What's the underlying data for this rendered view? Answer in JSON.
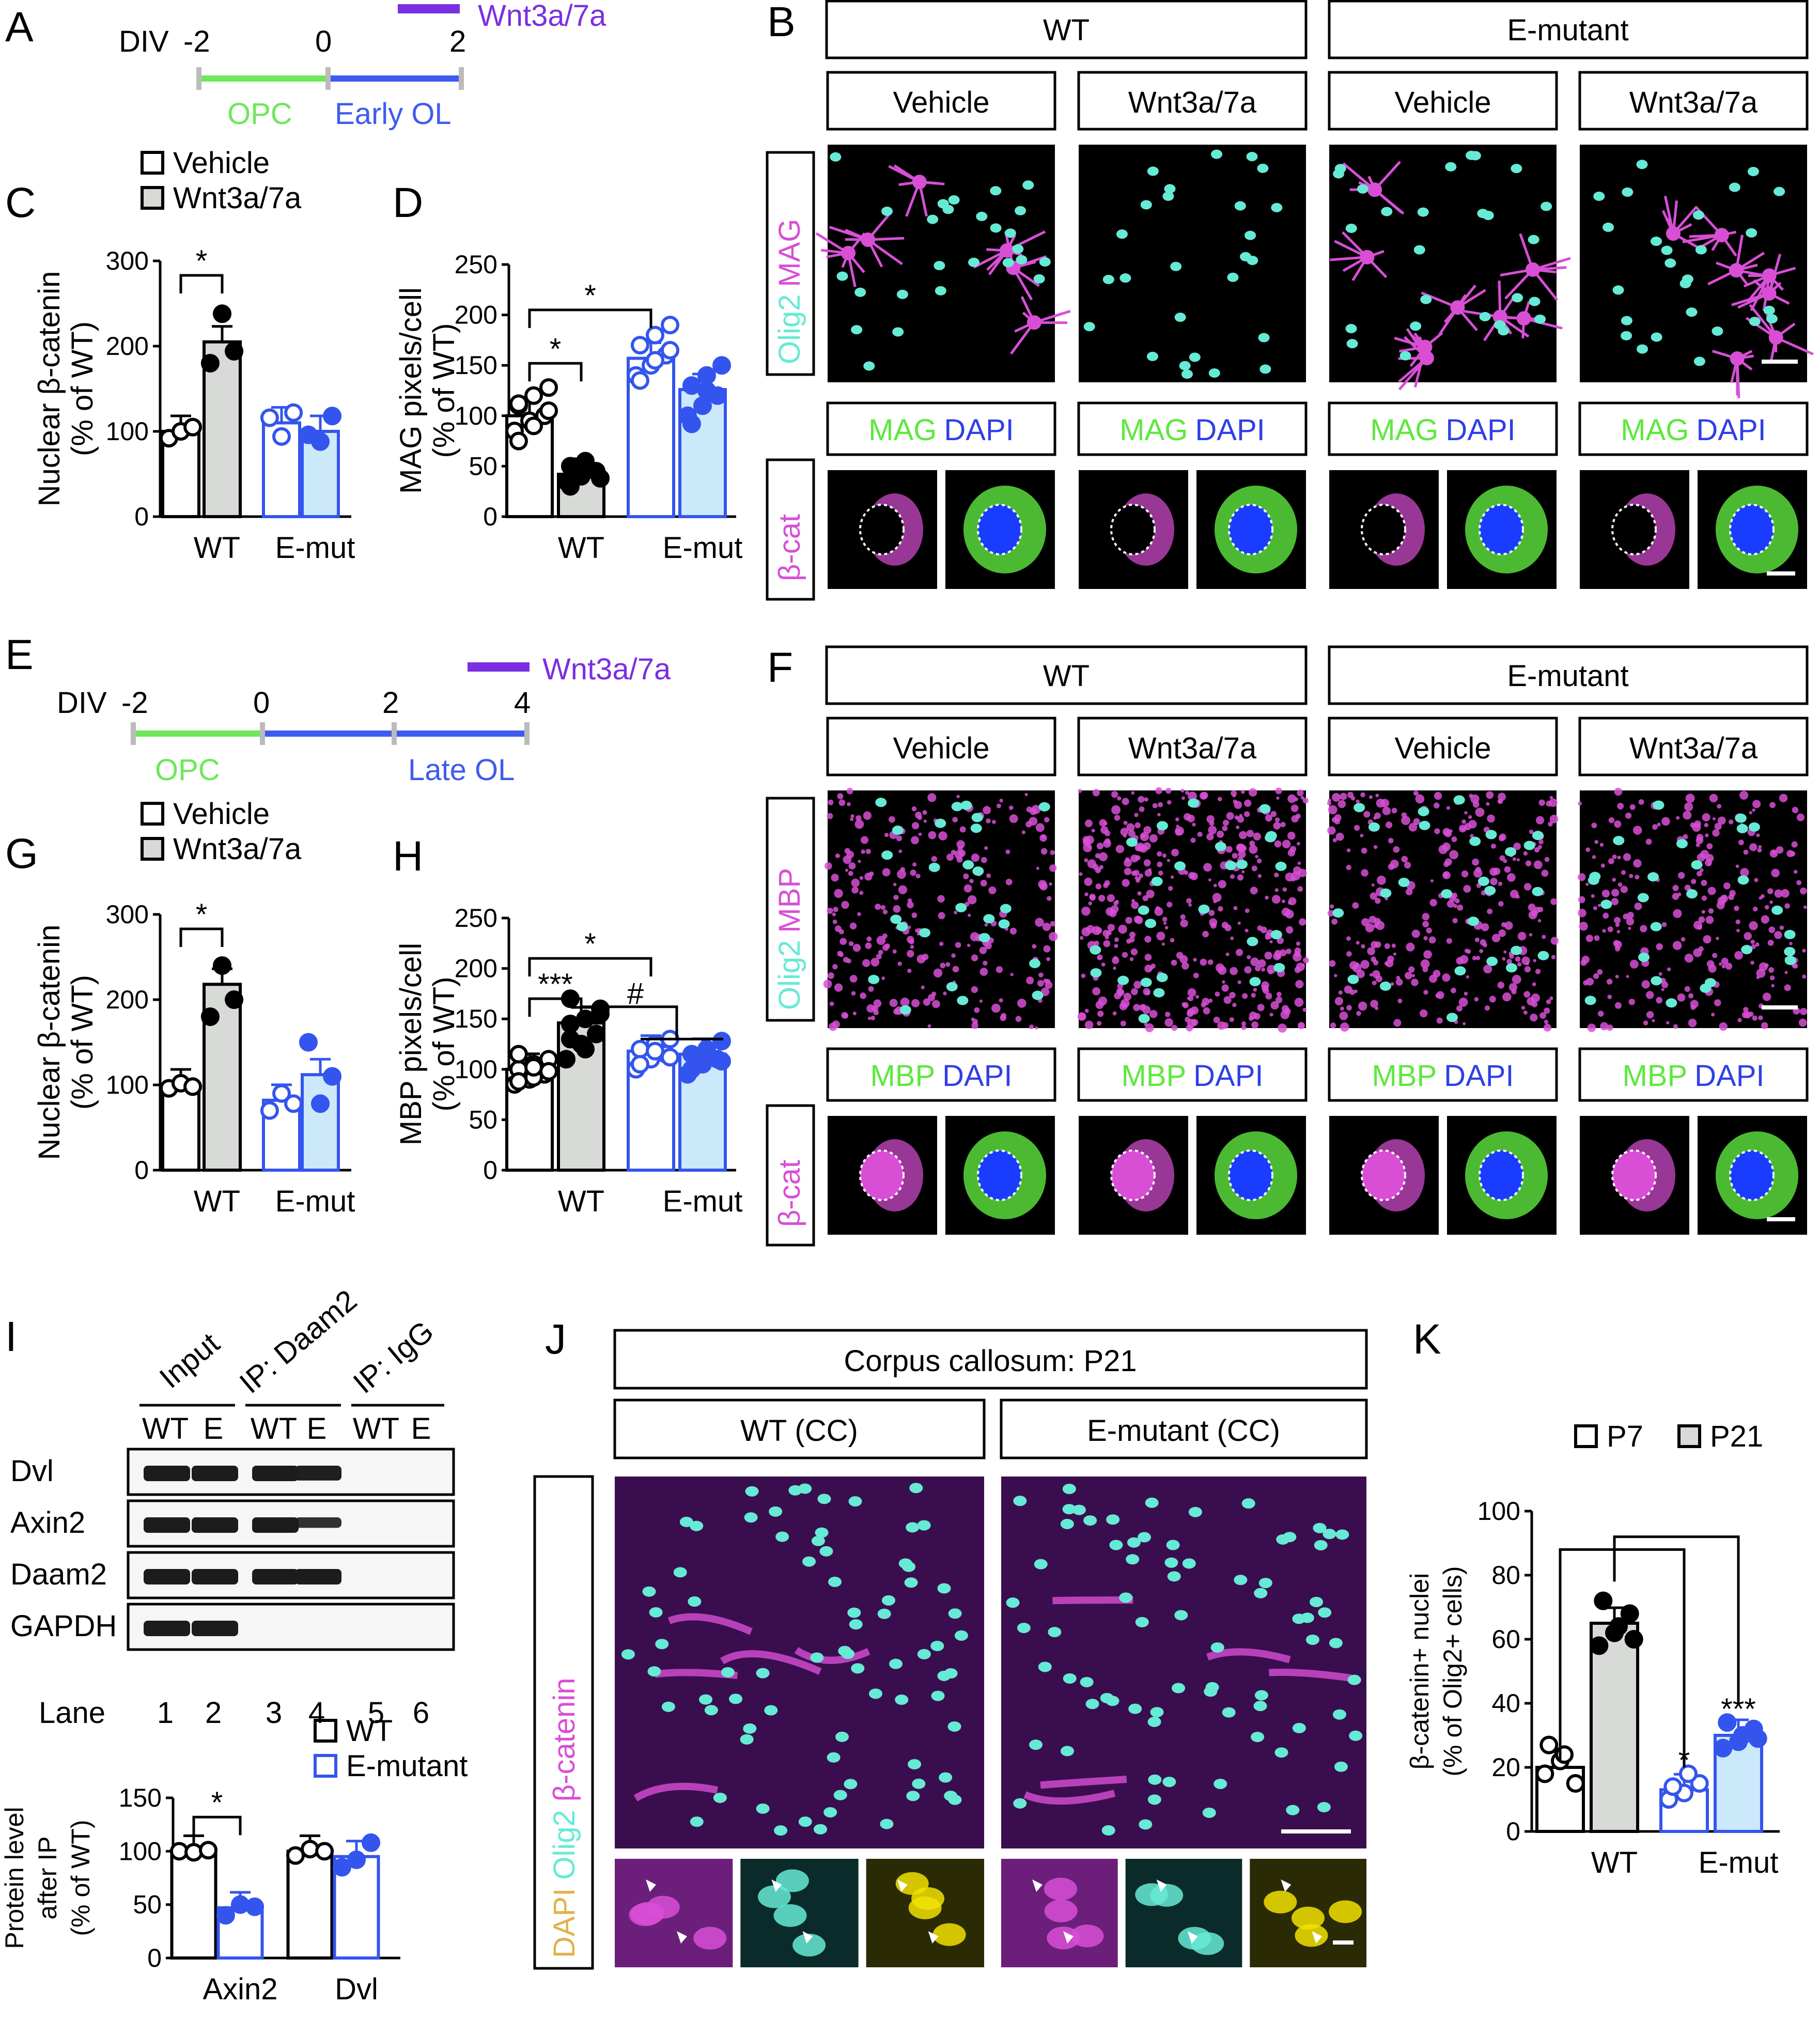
{
  "colors": {
    "opc": "#6ee75a",
    "ol": "#3f5bef",
    "wnt": "#7b2fe0",
    "emut": "#3355ee",
    "emutFill": "#cce8fb",
    "wtFill": "#d8dad7",
    "magenta": "#d84fd6",
    "cyan": "#66ead5",
    "green": "#5ee83e",
    "blue": "#2f3fe8",
    "gold": "#e0b34a",
    "gel": "#1c1c1c"
  },
  "panels": {
    "A": {
      "letter": "A",
      "div": "DIV",
      "ticks": [
        "-2",
        "0",
        "2"
      ],
      "opc": "OPC",
      "ol": "Early OL",
      "wnt": "Wnt3a/7a"
    },
    "E": {
      "letter": "E",
      "div": "DIV",
      "ticks": [
        "-2",
        "0",
        "2",
        "4"
      ],
      "opc": "OPC",
      "ol": "Late OL",
      "wnt": "Wnt3a/7a"
    },
    "B": {
      "letter": "B",
      "header": [
        "WT",
        "E-mutant"
      ],
      "sub": [
        "Vehicle",
        "Wnt3a/7a",
        "Vehicle",
        "Wnt3a/7a"
      ],
      "rowlabel": [
        "Olig2",
        "MAG"
      ],
      "boxlabel": [
        "MAG",
        "DAPI"
      ],
      "rowlabel2": "β-cat"
    },
    "F": {
      "letter": "F",
      "header": [
        "WT",
        "E-mutant"
      ],
      "sub": [
        "Vehicle",
        "Wnt3a/7a",
        "Vehicle",
        "Wnt3a/7a"
      ],
      "rowlabel": [
        "Olig2",
        "MBP"
      ],
      "boxlabel": [
        "MBP",
        "DAPI"
      ],
      "rowlabel2": "β-cat"
    },
    "I": {
      "letter": "I",
      "groups": [
        "Input",
        "IP: Daam2",
        "IP: IgG"
      ],
      "cols": [
        "WT",
        "E",
        "WT",
        "E",
        "WT",
        "E"
      ],
      "rows": [
        "Dvl",
        "Axin2",
        "Daam2",
        "GAPDH"
      ],
      "lane": "Lane",
      "lanes": [
        "1",
        "2",
        "3",
        "4",
        "5",
        "6"
      ]
    },
    "J": {
      "letter": "J",
      "title": "Corpus callosum: P21",
      "sub": [
        "WT (CC)",
        "E-mutant (CC)"
      ],
      "rowlabel": [
        "DAPI",
        "Olig2",
        "β-catenin"
      ]
    },
    "K": {
      "letter": "K"
    }
  },
  "chart_data": [
    {
      "panel": "C",
      "letter": "C",
      "type": "bar",
      "legend": [
        "Vehicle",
        "Wnt3a/7a"
      ],
      "ylabel": [
        "Nuclear β-catenin",
        "(% of WT)"
      ],
      "ylim": [
        0,
        300
      ],
      "yticks": [
        0,
        100,
        200,
        300
      ],
      "categories": [
        "WT",
        "E-mut"
      ],
      "series": [
        {
          "name": "Vehicle",
          "values": [
            100,
            110
          ]
        },
        {
          "name": "Wnt3a/7a",
          "values": [
            205,
            100
          ]
        }
      ],
      "sig": [
        "*"
      ]
    },
    {
      "panel": "D",
      "letter": "D",
      "type": "bar",
      "ylabel": [
        "MAG pixels/cell",
        "(% of WT)"
      ],
      "ylim": [
        0,
        250
      ],
      "yticks": [
        0,
        50,
        100,
        150,
        200,
        250
      ],
      "categories": [
        "WT",
        "E-mut"
      ],
      "series": [
        {
          "name": "Vehicle",
          "values": [
            100,
            157
          ]
        },
        {
          "name": "Wnt3a/7a",
          "values": [
            42,
            126
          ]
        }
      ],
      "sig": [
        "*",
        "*"
      ]
    },
    {
      "panel": "G",
      "letter": "G",
      "type": "bar",
      "legend": [
        "Vehicle",
        "Wnt3a/7a"
      ],
      "ylabel": [
        "Nuclear β-catenin",
        "(% of WT)"
      ],
      "ylim": [
        0,
        300
      ],
      "yticks": [
        0,
        100,
        200,
        300
      ],
      "categories": [
        "WT",
        "E-mut"
      ],
      "series": [
        {
          "name": "Vehicle",
          "values": [
            100,
            82
          ]
        },
        {
          "name": "Wnt3a/7a",
          "values": [
            218,
            112
          ]
        }
      ],
      "sig": [
        "*"
      ]
    },
    {
      "panel": "H",
      "letter": "H",
      "type": "bar",
      "ylabel": [
        "MBP pixels/cell",
        "(% of WT)"
      ],
      "ylim": [
        0,
        250
      ],
      "yticks": [
        0,
        50,
        100,
        150,
        200,
        250
      ],
      "categories": [
        "WT",
        "E-mut"
      ],
      "series": [
        {
          "name": "Vehicle",
          "values": [
            100,
            118
          ]
        },
        {
          "name": "Wnt3a/7a",
          "values": [
            146,
            115
          ]
        }
      ],
      "sig": [
        "*",
        "***",
        "#"
      ]
    },
    {
      "panel": "I",
      "type": "bar",
      "legend": [
        "WT",
        "E-mutant"
      ],
      "ylabel": [
        "Protein level",
        "after IP",
        "(% of WT)"
      ],
      "ylim": [
        0,
        150
      ],
      "yticks": [
        0,
        50,
        100,
        150
      ],
      "categories": [
        "Axin2",
        "Dvl"
      ],
      "series": [
        {
          "name": "WT",
          "values": [
            100,
            100
          ]
        },
        {
          "name": "E-mutant",
          "values": [
            47,
            95
          ]
        }
      ],
      "sig": [
        "*"
      ]
    },
    {
      "panel": "K",
      "type": "bar",
      "legend": [
        "P7",
        "P21"
      ],
      "ylabel": [
        "β-catenin+ nuclei",
        "(% of Olig2+ cells)"
      ],
      "ylim": [
        0,
        100
      ],
      "yticks": [
        0,
        20,
        40,
        60,
        80,
        100
      ],
      "categories": [
        "WT",
        "E-mut"
      ],
      "series": [
        {
          "name": "P7",
          "values": [
            20,
            13
          ]
        },
        {
          "name": "P21",
          "values": [
            65,
            30
          ]
        }
      ],
      "sig": [
        "*",
        "***"
      ]
    }
  ]
}
